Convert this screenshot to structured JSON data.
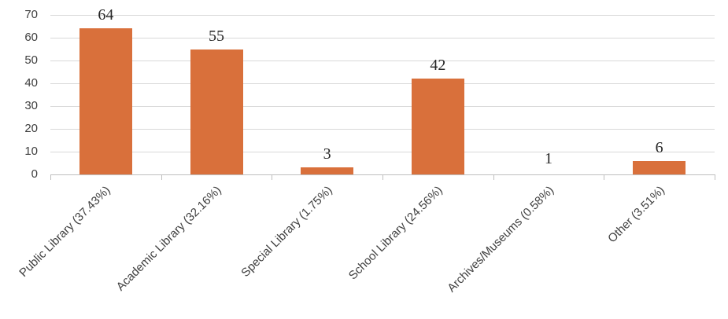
{
  "chart_data": {
    "type": "bar",
    "title": "",
    "xlabel": "",
    "ylabel": "",
    "categories": [
      "Public Library (37.43%)",
      "Academic Library (32.16%)",
      "Special Library (1.75%)",
      "School Library (24.56%)",
      "Archives/Museums (0.58%)",
      "Other (3.51%)"
    ],
    "values": [
      64,
      55,
      3,
      42,
      1,
      6
    ],
    "data_labels": [
      "64",
      "55",
      "3",
      "42",
      "1",
      "6"
    ],
    "ylim": [
      0,
      70
    ],
    "yticks": [
      "0",
      "10",
      "20",
      "30",
      "40",
      "50",
      "60",
      "70"
    ],
    "grid": true,
    "legend": null,
    "bar_color": "#d9703b"
  }
}
